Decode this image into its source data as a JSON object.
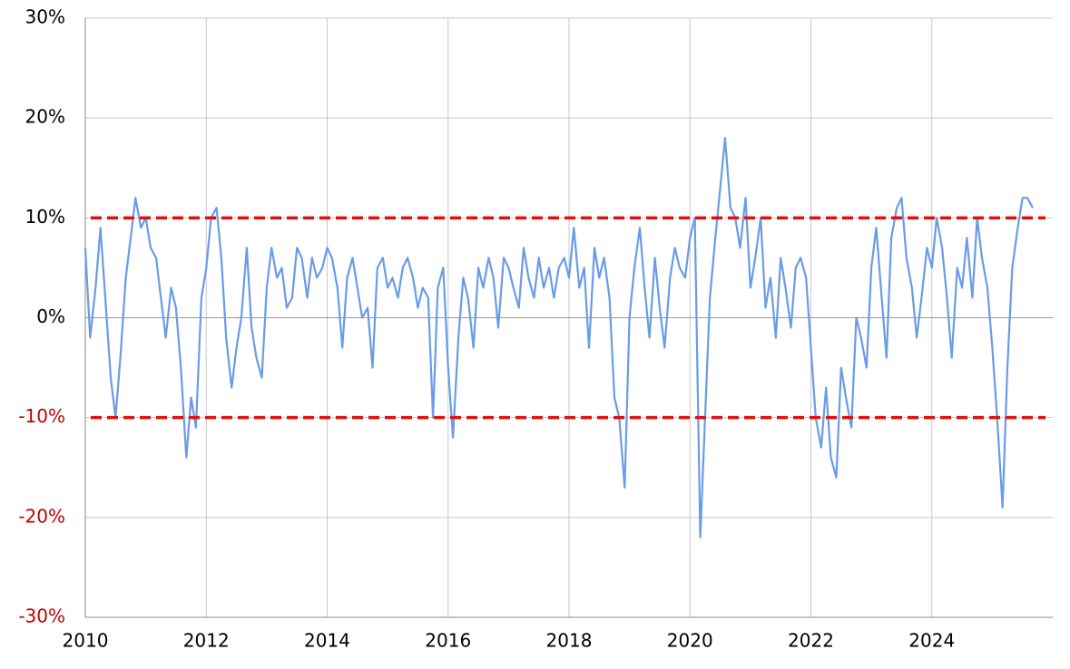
{
  "chart_data": {
    "type": "line",
    "x": [
      2010,
      2010.08,
      2010.17,
      2010.25,
      2010.33,
      2010.42,
      2010.5,
      2010.58,
      2010.67,
      2010.75,
      2010.83,
      2010.92,
      2011,
      2011.08,
      2011.17,
      2011.25,
      2011.33,
      2011.42,
      2011.5,
      2011.58,
      2011.67,
      2011.75,
      2011.83,
      2011.92,
      2012,
      2012.08,
      2012.17,
      2012.25,
      2012.33,
      2012.42,
      2012.5,
      2012.58,
      2012.67,
      2012.75,
      2012.83,
      2012.92,
      2013,
      2013.08,
      2013.17,
      2013.25,
      2013.33,
      2013.42,
      2013.5,
      2013.58,
      2013.67,
      2013.75,
      2013.83,
      2013.92,
      2014,
      2014.08,
      2014.17,
      2014.25,
      2014.33,
      2014.42,
      2014.5,
      2014.58,
      2014.67,
      2014.75,
      2014.83,
      2014.92,
      2015,
      2015.08,
      2015.17,
      2015.25,
      2015.33,
      2015.42,
      2015.5,
      2015.58,
      2015.67,
      2015.75,
      2015.83,
      2015.92,
      2016,
      2016.08,
      2016.17,
      2016.25,
      2016.33,
      2016.42,
      2016.5,
      2016.58,
      2016.67,
      2016.75,
      2016.83,
      2016.92,
      2017,
      2017.08,
      2017.17,
      2017.25,
      2017.33,
      2017.42,
      2017.5,
      2017.58,
      2017.67,
      2017.75,
      2017.83,
      2017.92,
      2018,
      2018.08,
      2018.17,
      2018.25,
      2018.33,
      2018.42,
      2018.5,
      2018.58,
      2018.67,
      2018.75,
      2018.83,
      2018.92,
      2019,
      2019.08,
      2019.17,
      2019.25,
      2019.33,
      2019.42,
      2019.5,
      2019.58,
      2019.67,
      2019.75,
      2019.83,
      2019.92,
      2020,
      2020.08,
      2020.17,
      2020.25,
      2020.33,
      2020.42,
      2020.5,
      2020.58,
      2020.67,
      2020.75,
      2020.83,
      2020.92,
      2021,
      2021.08,
      2021.17,
      2021.25,
      2021.33,
      2021.42,
      2021.5,
      2021.58,
      2021.67,
      2021.75,
      2021.83,
      2021.92,
      2022,
      2022.08,
      2022.17,
      2022.25,
      2022.33,
      2022.42,
      2022.5,
      2022.58,
      2022.67,
      2022.75,
      2022.83,
      2022.92,
      2023,
      2023.08,
      2023.17,
      2023.25,
      2023.33,
      2023.42,
      2023.5,
      2023.58,
      2023.67,
      2023.75,
      2023.83,
      2023.92,
      2024,
      2024.08,
      2024.17,
      2024.25,
      2024.33,
      2024.42,
      2024.5,
      2024.58,
      2024.67,
      2024.75,
      2024.83,
      2024.92,
      2025,
      2025.08,
      2025.17,
      2025.25,
      2025.33,
      2025.42,
      2025.5,
      2025.58,
      2025.67
    ],
    "series": [
      {
        "color": "#6a9be8",
        "values": [
          7,
          -2,
          3,
          9,
          2,
          -6,
          -10,
          -4,
          4,
          8,
          12,
          9,
          10,
          7,
          6,
          2,
          -2,
          3,
          1,
          -5,
          -14,
          -8,
          -11,
          2,
          5,
          10,
          11,
          6,
          -2,
          -7,
          -3,
          0,
          7,
          -1,
          -4,
          -6,
          3,
          7,
          4,
          5,
          1,
          2,
          7,
          6,
          2,
          6,
          4,
          5,
          7,
          6,
          3,
          -3,
          4,
          6,
          3,
          0,
          1,
          -5,
          5,
          6,
          3,
          4,
          2,
          5,
          6,
          4,
          1,
          3,
          2,
          -10,
          3,
          5,
          -5,
          -12,
          -2,
          4,
          2,
          -3,
          5,
          3,
          6,
          4,
          -1,
          6,
          5,
          3,
          1,
          7,
          4,
          2,
          6,
          3,
          5,
          2,
          5,
          6,
          4,
          9,
          3,
          5,
          -3,
          7,
          4,
          6,
          2,
          -8,
          -10,
          -17,
          0,
          5,
          9,
          3,
          -2,
          6,
          1,
          -3,
          4,
          7,
          5,
          4,
          8,
          10,
          -22,
          -10,
          2,
          8,
          13,
          18,
          11,
          10,
          7,
          12,
          3,
          6,
          10,
          1,
          4,
          -2,
          6,
          3,
          -1,
          5,
          6,
          4,
          -3,
          -10,
          -13,
          -7,
          -14,
          -16,
          -5,
          -8,
          -11,
          0,
          -2,
          -5,
          5,
          9,
          2,
          -4,
          8,
          11,
          12,
          6,
          3,
          -2,
          2,
          7,
          5,
          10,
          7,
          2,
          -4,
          5,
          3,
          8,
          2,
          10,
          6,
          3,
          -3,
          -10,
          -19,
          -5,
          5,
          9,
          12,
          12,
          11
        ]
      }
    ],
    "xlim": [
      2010,
      2026
    ],
    "xticks": [
      2010,
      2012,
      2014,
      2016,
      2018,
      2020,
      2022,
      2024
    ],
    "ylim": [
      -30,
      30
    ],
    "yticks": [
      {
        "value": -30,
        "label": "-30%"
      },
      {
        "value": -20,
        "label": "-20%"
      },
      {
        "value": -10,
        "label": "-10%"
      },
      {
        "value": 0,
        "label": "0%"
      },
      {
        "value": 10,
        "label": "10%"
      },
      {
        "value": 20,
        "label": "20%"
      },
      {
        "value": 30,
        "label": "30%"
      }
    ],
    "grid": true,
    "negative_tick_color": "#c00000",
    "reference_lines": [
      10,
      -10
    ],
    "reference_color": "#e01010"
  }
}
